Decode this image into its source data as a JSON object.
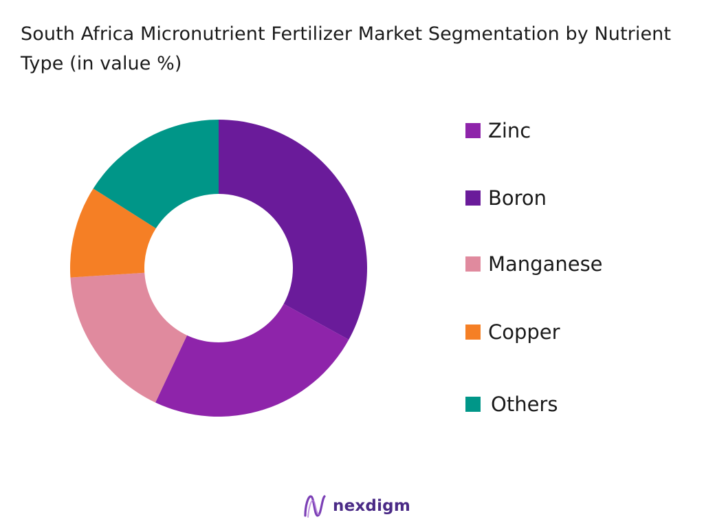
{
  "chart_data": {
    "type": "pie",
    "donut": true,
    "title": "South Africa Micronutrient Fertilizer Market Segmentation by Nutrient Type (in value %)",
    "start_angle_deg": 0,
    "legend_position": "right",
    "slices": [
      {
        "label": "Boron",
        "value": 33,
        "color": "#6a1b9a"
      },
      {
        "label": "Zinc",
        "value": 24,
        "color": "#8e24aa"
      },
      {
        "label": "Manganese",
        "value": 17,
        "color": "#e08a9e"
      },
      {
        "label": "Copper",
        "value": 10,
        "color": "#f57f25"
      },
      {
        "label": "Others",
        "value": 16,
        "color": "#009688"
      }
    ],
    "legend": [
      {
        "label": "Zinc",
        "color": "#8e24aa"
      },
      {
        "label": "Boron",
        "color": "#6a1b9a"
      },
      {
        "label": "Manganese",
        "color": "#e08a9e"
      },
      {
        "label": "Copper",
        "color": "#f57f25"
      },
      {
        "label": "Others",
        "color": "#009688"
      }
    ]
  },
  "brand": {
    "name": "nexdigm",
    "logo_icon": "nexdigm-wave-icon",
    "color": "#4a2a86"
  }
}
